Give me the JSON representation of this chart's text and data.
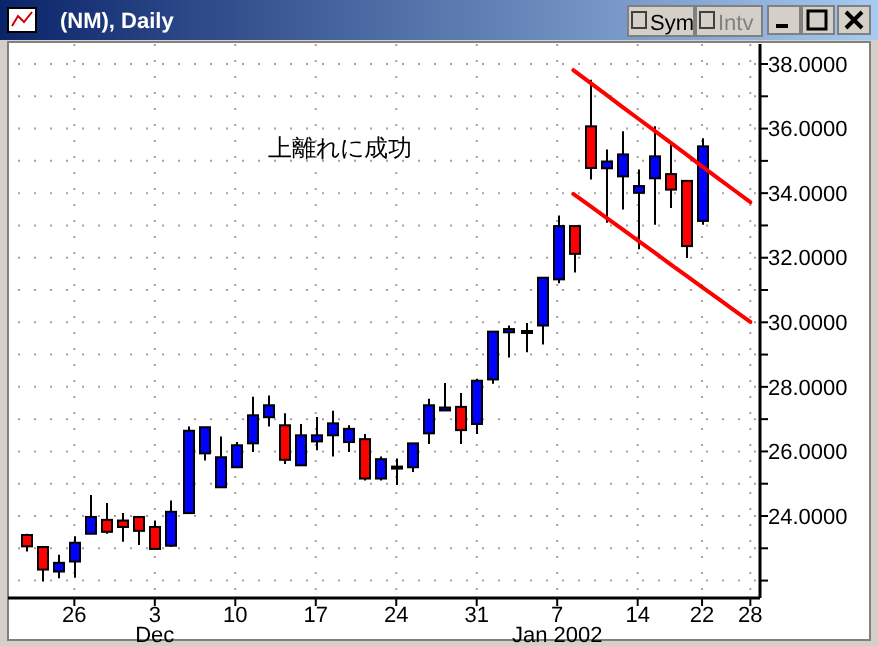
{
  "chart_data": {
    "type": "candlestick",
    "title": "(NM), Daily",
    "categories": [
      null,
      null,
      null,
      "26",
      null,
      null,
      null,
      null,
      "3\nDec",
      null,
      null,
      null,
      null,
      "10",
      null,
      null,
      null,
      null,
      "17",
      null,
      null,
      null,
      null,
      "24",
      null,
      null,
      null,
      null,
      "31",
      null,
      null,
      null,
      null,
      "7\nJan 2002",
      null,
      null,
      null,
      null,
      "14",
      null,
      null,
      null,
      "22",
      null,
      null,
      "28"
    ],
    "ohlc": [
      [
        23.41,
        23.45,
        22.9,
        23.06
      ],
      [
        23.04,
        23.05,
        21.97,
        22.34
      ],
      [
        22.28,
        22.8,
        22.07,
        22.55
      ],
      [
        22.59,
        23.37,
        22.09,
        23.17
      ],
      [
        23.45,
        24.65,
        23.45,
        23.97
      ],
      [
        23.88,
        24.4,
        23.45,
        23.51
      ],
      [
        23.86,
        24.09,
        23.2,
        23.66
      ],
      [
        23.97,
        23.97,
        23.1,
        23.54
      ],
      [
        23.66,
        23.86,
        22.98,
        22.98
      ],
      [
        23.08,
        24.48,
        23.04,
        24.13
      ],
      [
        24.09,
        26.77,
        24.09,
        26.64
      ],
      [
        25.94,
        26.75,
        25.72,
        26.75
      ],
      [
        24.89,
        26.46,
        24.89,
        25.82
      ],
      [
        25.51,
        26.29,
        25.51,
        26.19
      ],
      [
        26.25,
        27.69,
        25.98,
        27.12
      ],
      [
        27.06,
        27.73,
        26.77,
        27.43
      ],
      [
        26.81,
        27.18,
        25.61,
        25.74
      ],
      [
        25.57,
        26.85,
        25.57,
        26.5
      ],
      [
        26.31,
        27.07,
        26.04,
        26.5
      ],
      [
        26.5,
        27.26,
        25.84,
        26.87
      ],
      [
        26.29,
        26.81,
        25.98,
        26.7
      ],
      [
        26.38,
        26.54,
        25.1,
        25.16
      ],
      [
        25.16,
        25.84,
        25.1,
        25.76
      ],
      [
        25.49,
        25.78,
        24.96,
        25.53
      ],
      [
        25.51,
        26.25,
        25.36,
        26.25
      ],
      [
        26.56,
        27.63,
        26.23,
        27.43
      ],
      [
        27.27,
        28.12,
        27.26,
        27.36
      ],
      [
        27.38,
        27.81,
        26.23,
        26.66
      ],
      [
        26.85,
        28.25,
        26.54,
        28.19
      ],
      [
        28.23,
        29.71,
        28.1,
        29.71
      ],
      [
        29.69,
        29.9,
        28.91,
        29.79
      ],
      [
        29.69,
        29.98,
        29.07,
        29.73
      ],
      [
        29.9,
        31.38,
        29.31,
        31.38
      ],
      [
        31.33,
        33.31,
        31.21,
        32.98
      ],
      [
        32.98,
        32.98,
        31.54,
        32.12
      ],
      [
        36.07,
        37.51,
        34.42,
        34.78
      ],
      [
        34.77,
        35.35,
        33.08,
        34.98
      ],
      [
        34.52,
        35.92,
        33.49,
        35.2
      ],
      [
        34.01,
        34.73,
        32.26,
        34.22
      ],
      [
        34.46,
        36.07,
        33.02,
        35.14
      ],
      [
        34.59,
        35.49,
        33.54,
        34.11
      ],
      [
        34.38,
        34.38,
        31.99,
        32.36
      ],
      [
        33.14,
        35.7,
        33.02,
        35.45
      ],
      null,
      null,
      null
    ],
    "colors": [
      "#ff0000",
      "#ff0000",
      "#0000ff",
      "#0000ff",
      "#0000ff",
      "#ff0000",
      "#ff0000",
      "#ff0000",
      "#ff0000",
      "#0000ff",
      "#0000ff",
      "#0000ff",
      "#0000ff",
      "#0000ff",
      "#0000ff",
      "#0000ff",
      "#ff0000",
      "#0000ff",
      "#0000ff",
      "#0000ff",
      "#0000ff",
      "#ff0000",
      "#0000ff",
      "#0000ff",
      "#0000ff",
      "#0000ff",
      "#0000ff",
      "#ff0000",
      "#0000ff",
      "#0000ff",
      "#0000ff",
      "#0000ff",
      "#0000ff",
      "#0000ff",
      "#ff0000",
      "#ff0000",
      "#0000ff",
      "#0000ff",
      "#0000ff",
      "#0000ff",
      "#ff0000",
      "#ff0000",
      "#0000ff",
      null,
      null,
      null
    ],
    "series": [
      {
        "type": "line",
        "values": [
          null,
          null,
          null,
          null,
          null,
          null,
          null,
          null,
          null,
          null,
          null,
          null,
          null,
          null,
          null,
          null,
          null,
          null,
          null,
          null,
          null,
          null,
          null,
          null,
          null,
          null,
          null,
          null,
          null,
          null,
          null,
          null,
          null,
          null,
          37.81,
          37.44,
          37.07,
          36.69,
          36.32,
          35.95,
          35.58,
          35.21,
          34.83,
          34.46,
          34.09,
          33.72
        ],
        "color": "#ff0000"
      },
      {
        "type": "line",
        "values": [
          null,
          null,
          null,
          null,
          null,
          null,
          null,
          null,
          null,
          null,
          null,
          null,
          null,
          null,
          null,
          null,
          null,
          null,
          null,
          null,
          null,
          null,
          null,
          null,
          null,
          null,
          null,
          null,
          null,
          null,
          null,
          null,
          null,
          null,
          33.98,
          33.62,
          33.26,
          32.9,
          32.54,
          32.18,
          31.81,
          31.45,
          31.09,
          30.73,
          30.37,
          30.01
        ],
        "color": "#ff0000"
      }
    ],
    "ylim": [
      21.46,
      38.62
    ],
    "yticks": [
      {
        "value": 22,
        "label": null
      },
      {
        "value": 23,
        "label": null
      },
      {
        "value": 24,
        "label": "24.0000"
      },
      {
        "value": 25,
        "label": null
      },
      {
        "value": 26,
        "label": "26.0000"
      },
      {
        "value": 27,
        "label": null
      },
      {
        "value": 28,
        "label": "28.0000"
      },
      {
        "value": 29,
        "label": null
      },
      {
        "value": 30,
        "label": "30.0000"
      },
      {
        "value": 31,
        "label": null
      },
      {
        "value": 32,
        "label": "32.0000"
      },
      {
        "value": 33,
        "label": null
      },
      {
        "value": 34,
        "label": "34.0000"
      },
      {
        "value": 35,
        "label": null
      },
      {
        "value": 36,
        "label": "36.0000"
      },
      {
        "value": 37,
        "label": null
      },
      {
        "value": 38,
        "label": "38.0000"
      }
    ],
    "grid": true,
    "annotations": [
      "上離れに成功",
      "Sym",
      "Intv"
    ]
  }
}
